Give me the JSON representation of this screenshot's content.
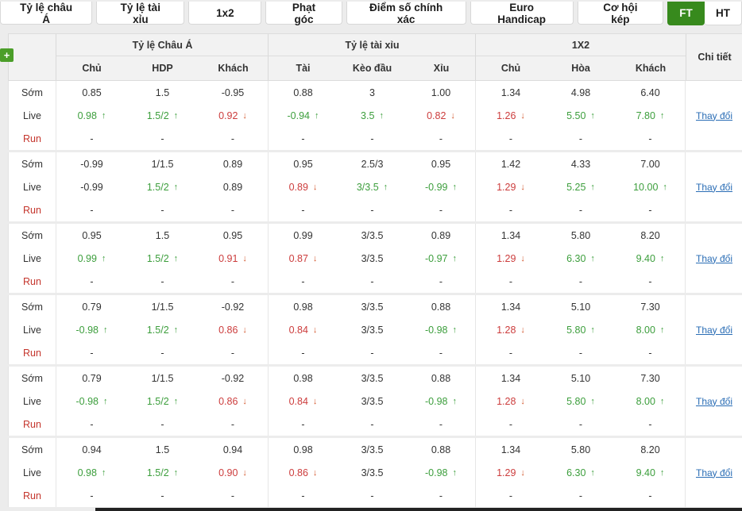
{
  "tab_bar": {
    "tabs": [
      {
        "label": "Tỷ lệ châu Á"
      },
      {
        "label": "Tỷ lệ tài xỉu"
      },
      {
        "label": "1x2"
      },
      {
        "label": "Phạt góc"
      },
      {
        "label": "Điểm số chính xác"
      },
      {
        "label": "Euro Handicap"
      },
      {
        "label": "Cơ hội kép"
      }
    ],
    "period_toggle": {
      "ft": "FT",
      "ht": "HT",
      "active": "FT"
    }
  },
  "colors": {
    "active_tab_green": "#378a1d",
    "odds_up_green": "#3c9e3c",
    "odds_down_red": "#cc3c3c",
    "arrow_down_orange": "#d4572e",
    "link_blue": "#2a6db5",
    "run_label_red": "#c4352c"
  },
  "table": {
    "add_button": "+",
    "groups": [
      {
        "label": "Tỷ lệ Châu Á",
        "cols": [
          "Chủ",
          "HDP",
          "Khách"
        ]
      },
      {
        "label": "Tỷ lệ tài xỉu",
        "cols": [
          "Tài",
          "Kèo đầu",
          "Xỉu"
        ]
      },
      {
        "label": "1X2",
        "cols": [
          "Chủ",
          "Hòa",
          "Khách"
        ]
      }
    ],
    "detail_header": "Chi tiết",
    "row_labels": {
      "early": "Sớm",
      "live": "Live",
      "run": "Run"
    },
    "change_link": "Thay đổi",
    "blocks": [
      {
        "early": [
          {
            "v": "0.85"
          },
          {
            "v": "1.5"
          },
          {
            "v": "-0.95"
          },
          {
            "v": "0.88"
          },
          {
            "v": "3"
          },
          {
            "v": "1.00"
          },
          {
            "v": "1.34"
          },
          {
            "v": "4.98"
          },
          {
            "v": "6.40"
          }
        ],
        "live": [
          {
            "v": "0.98",
            "t": "up",
            "c": "green"
          },
          {
            "v": "1.5/2",
            "t": "up",
            "c": "green"
          },
          {
            "v": "0.92",
            "t": "down",
            "c": "red"
          },
          {
            "v": "-0.94",
            "t": "up",
            "c": "green"
          },
          {
            "v": "3.5",
            "t": "up",
            "c": "green"
          },
          {
            "v": "0.82",
            "t": "down",
            "c": "red"
          },
          {
            "v": "1.26",
            "t": "down",
            "c": "red"
          },
          {
            "v": "5.50",
            "t": "up",
            "c": "green"
          },
          {
            "v": "7.80",
            "t": "up",
            "c": "green"
          }
        ],
        "run": [
          {
            "v": "-"
          },
          {
            "v": "-"
          },
          {
            "v": "-"
          },
          {
            "v": "-"
          },
          {
            "v": "-"
          },
          {
            "v": "-"
          },
          {
            "v": "-"
          },
          {
            "v": "-"
          },
          {
            "v": "-"
          }
        ]
      },
      {
        "early": [
          {
            "v": "-0.99"
          },
          {
            "v": "1/1.5"
          },
          {
            "v": "0.89"
          },
          {
            "v": "0.95"
          },
          {
            "v": "2.5/3"
          },
          {
            "v": "0.95"
          },
          {
            "v": "1.42"
          },
          {
            "v": "4.33"
          },
          {
            "v": "7.00"
          }
        ],
        "live": [
          {
            "v": "-0.99"
          },
          {
            "v": "1.5/2",
            "t": "up",
            "c": "green"
          },
          {
            "v": "0.89"
          },
          {
            "v": "0.89",
            "t": "down",
            "c": "red"
          },
          {
            "v": "3/3.5",
            "t": "up",
            "c": "green"
          },
          {
            "v": "-0.99",
            "t": "up",
            "c": "green"
          },
          {
            "v": "1.29",
            "t": "down",
            "c": "red"
          },
          {
            "v": "5.25",
            "t": "up",
            "c": "green"
          },
          {
            "v": "10.00",
            "t": "up",
            "c": "green"
          }
        ],
        "run": [
          {
            "v": "-"
          },
          {
            "v": "-"
          },
          {
            "v": "-"
          },
          {
            "v": "-"
          },
          {
            "v": "-"
          },
          {
            "v": "-"
          },
          {
            "v": "-"
          },
          {
            "v": "-"
          },
          {
            "v": "-"
          }
        ]
      },
      {
        "early": [
          {
            "v": "0.95"
          },
          {
            "v": "1.5"
          },
          {
            "v": "0.95"
          },
          {
            "v": "0.99"
          },
          {
            "v": "3/3.5"
          },
          {
            "v": "0.89"
          },
          {
            "v": "1.34"
          },
          {
            "v": "5.80"
          },
          {
            "v": "8.20"
          }
        ],
        "live": [
          {
            "v": "0.99",
            "t": "up",
            "c": "green"
          },
          {
            "v": "1.5/2",
            "t": "up",
            "c": "green"
          },
          {
            "v": "0.91",
            "t": "down",
            "c": "red"
          },
          {
            "v": "0.87",
            "t": "down",
            "c": "red"
          },
          {
            "v": "3/3.5"
          },
          {
            "v": "-0.97",
            "t": "up",
            "c": "green"
          },
          {
            "v": "1.29",
            "t": "down",
            "c": "red"
          },
          {
            "v": "6.30",
            "t": "up",
            "c": "green"
          },
          {
            "v": "9.40",
            "t": "up",
            "c": "green"
          }
        ],
        "run": [
          {
            "v": "-"
          },
          {
            "v": "-"
          },
          {
            "v": "-"
          },
          {
            "v": "-"
          },
          {
            "v": "-"
          },
          {
            "v": "-"
          },
          {
            "v": "-"
          },
          {
            "v": "-"
          },
          {
            "v": "-"
          }
        ]
      },
      {
        "early": [
          {
            "v": "0.79"
          },
          {
            "v": "1/1.5"
          },
          {
            "v": "-0.92"
          },
          {
            "v": "0.98"
          },
          {
            "v": "3/3.5"
          },
          {
            "v": "0.88"
          },
          {
            "v": "1.34"
          },
          {
            "v": "5.10"
          },
          {
            "v": "7.30"
          }
        ],
        "live": [
          {
            "v": "-0.98",
            "t": "up",
            "c": "green"
          },
          {
            "v": "1.5/2",
            "t": "up",
            "c": "green"
          },
          {
            "v": "0.86",
            "t": "down",
            "c": "red"
          },
          {
            "v": "0.84",
            "t": "down",
            "c": "red"
          },
          {
            "v": "3/3.5"
          },
          {
            "v": "-0.98",
            "t": "up",
            "c": "green"
          },
          {
            "v": "1.28",
            "t": "down",
            "c": "red"
          },
          {
            "v": "5.80",
            "t": "up",
            "c": "green"
          },
          {
            "v": "8.00",
            "t": "up",
            "c": "green"
          }
        ],
        "run": [
          {
            "v": "-"
          },
          {
            "v": "-"
          },
          {
            "v": "-"
          },
          {
            "v": "-"
          },
          {
            "v": "-"
          },
          {
            "v": "-"
          },
          {
            "v": "-"
          },
          {
            "v": "-"
          },
          {
            "v": "-"
          }
        ]
      },
      {
        "early": [
          {
            "v": "0.79"
          },
          {
            "v": "1/1.5"
          },
          {
            "v": "-0.92"
          },
          {
            "v": "0.98"
          },
          {
            "v": "3/3.5"
          },
          {
            "v": "0.88"
          },
          {
            "v": "1.34"
          },
          {
            "v": "5.10"
          },
          {
            "v": "7.30"
          }
        ],
        "live": [
          {
            "v": "-0.98",
            "t": "up",
            "c": "green"
          },
          {
            "v": "1.5/2",
            "t": "up",
            "c": "green"
          },
          {
            "v": "0.86",
            "t": "down",
            "c": "red"
          },
          {
            "v": "0.84",
            "t": "down",
            "c": "red"
          },
          {
            "v": "3/3.5"
          },
          {
            "v": "-0.98",
            "t": "up",
            "c": "green"
          },
          {
            "v": "1.28",
            "t": "down",
            "c": "red"
          },
          {
            "v": "5.80",
            "t": "up",
            "c": "green"
          },
          {
            "v": "8.00",
            "t": "up",
            "c": "green"
          }
        ],
        "run": [
          {
            "v": "-"
          },
          {
            "v": "-"
          },
          {
            "v": "-"
          },
          {
            "v": "-"
          },
          {
            "v": "-"
          },
          {
            "v": "-"
          },
          {
            "v": "-"
          },
          {
            "v": "-"
          },
          {
            "v": "-"
          }
        ]
      },
      {
        "early": [
          {
            "v": "0.94"
          },
          {
            "v": "1.5"
          },
          {
            "v": "0.94"
          },
          {
            "v": "0.98"
          },
          {
            "v": "3/3.5"
          },
          {
            "v": "0.88"
          },
          {
            "v": "1.34"
          },
          {
            "v": "5.80"
          },
          {
            "v": "8.20"
          }
        ],
        "live": [
          {
            "v": "0.98",
            "t": "up",
            "c": "green"
          },
          {
            "v": "1.5/2",
            "t": "up",
            "c": "green"
          },
          {
            "v": "0.90",
            "t": "down",
            "c": "red"
          },
          {
            "v": "0.86",
            "t": "down",
            "c": "red"
          },
          {
            "v": "3/3.5"
          },
          {
            "v": "-0.98",
            "t": "up",
            "c": "green"
          },
          {
            "v": "1.29",
            "t": "down",
            "c": "red"
          },
          {
            "v": "6.30",
            "t": "up",
            "c": "green"
          },
          {
            "v": "9.40",
            "t": "up",
            "c": "green"
          }
        ],
        "run": [
          {
            "v": "-"
          },
          {
            "v": "-"
          },
          {
            "v": "-"
          },
          {
            "v": "-"
          },
          {
            "v": "-"
          },
          {
            "v": "-"
          },
          {
            "v": "-"
          },
          {
            "v": "-"
          },
          {
            "v": "-"
          }
        ]
      }
    ]
  }
}
